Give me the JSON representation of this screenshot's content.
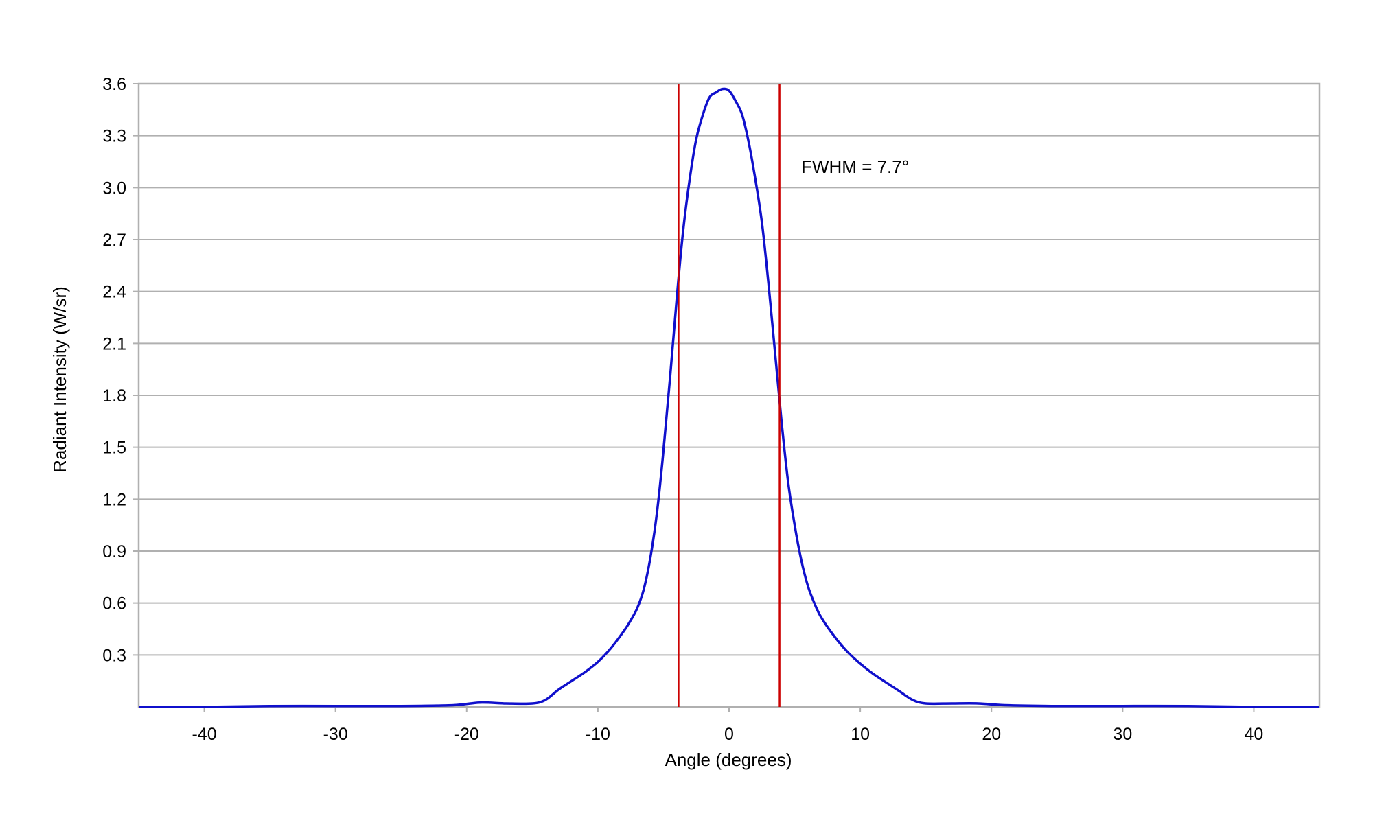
{
  "chart_data": {
    "type": "line",
    "title": "",
    "xlabel": "Angle (degrees)",
    "ylabel": "Radiant Intensity (W/sr)",
    "xlim": [
      -45,
      45
    ],
    "ylim": [
      0,
      3.6
    ],
    "xticks": [
      -40,
      -30,
      -20,
      -10,
      0,
      10,
      20,
      30,
      40
    ],
    "xtick_labels": [
      "-40",
      "-30",
      "-20",
      "-10",
      "0",
      "10",
      "20",
      "30",
      "40"
    ],
    "yticks": [
      0.3,
      0.6,
      0.9,
      1.2,
      1.5,
      1.8,
      2.1,
      2.4,
      2.7,
      3.0,
      3.3,
      3.6
    ],
    "ytick_labels": [
      "0.3",
      "0.6",
      "0.9",
      "1.2",
      "1.5",
      "1.8",
      "2.1",
      "2.4",
      "2.7",
      "3.0",
      "3.3",
      "3.6"
    ],
    "grid": "horizontal",
    "legend": "none",
    "series": [
      {
        "color": "#1010cc",
        "x": [
          -45,
          -40,
          -35,
          -30,
          -25,
          -21,
          -19,
          -17,
          -15,
          -14,
          -13,
          -12,
          -11,
          -10,
          -9,
          -8,
          -7.5,
          -7,
          -6.5,
          -6,
          -5.5,
          -5,
          -4.5,
          -4,
          -3.5,
          -3,
          -2.5,
          -2,
          -1.5,
          -1,
          -0.5,
          0,
          0.5,
          1,
          1.5,
          2,
          2.5,
          3,
          3.5,
          4,
          4.5,
          5,
          5.5,
          6,
          6.5,
          7,
          8,
          9,
          10,
          11,
          12,
          13,
          14,
          15,
          17,
          19,
          21,
          25,
          30,
          35,
          40,
          45
        ],
        "y": [
          0.0,
          0.0,
          0.005,
          0.005,
          0.005,
          0.01,
          0.025,
          0.02,
          0.02,
          0.04,
          0.1,
          0.15,
          0.2,
          0.26,
          0.34,
          0.44,
          0.5,
          0.57,
          0.68,
          0.86,
          1.12,
          1.48,
          1.9,
          2.35,
          2.75,
          3.05,
          3.28,
          3.42,
          3.52,
          3.55,
          3.57,
          3.56,
          3.5,
          3.42,
          3.26,
          3.05,
          2.8,
          2.45,
          2.05,
          1.65,
          1.3,
          1.05,
          0.85,
          0.7,
          0.6,
          0.52,
          0.41,
          0.32,
          0.25,
          0.19,
          0.14,
          0.09,
          0.04,
          0.02,
          0.02,
          0.02,
          0.01,
          0.005,
          0.005,
          0.005,
          0.0,
          0.0
        ]
      }
    ],
    "reference_lines": [
      {
        "axis": "x",
        "value": -3.85,
        "color": "#cc0000"
      },
      {
        "axis": "x",
        "value": 3.85,
        "color": "#cc0000"
      }
    ],
    "annotations": [
      {
        "text": "FWHM = 7.7°",
        "x": 5.5,
        "y": 3.12
      }
    ]
  },
  "colors": {
    "gridline": "#b0b0b0",
    "frame": "#b0b0b0",
    "curve": "#1010cc",
    "reference_line": "#cc0000",
    "text": "#000000"
  }
}
